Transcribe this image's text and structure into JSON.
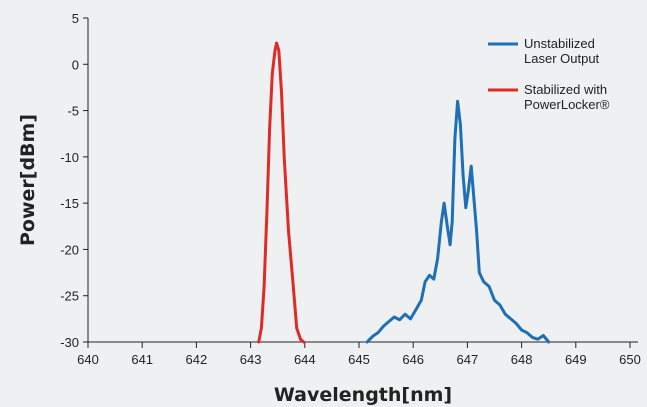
{
  "chart_data": {
    "type": "line",
    "xlabel": "Wavelength[nm]",
    "ylabel": "Power[dBm]",
    "xlim": [
      640,
      650
    ],
    "ylim": [
      -30,
      5
    ],
    "xticks": [
      "640",
      "641",
      "642",
      "643",
      "644",
      "645",
      "646",
      "647",
      "648",
      "649",
      "650"
    ],
    "yticks": [
      "5",
      "0",
      "-5",
      "-10",
      "-15",
      "-20",
      "-25",
      "-30"
    ],
    "grid": false,
    "legend_position": "top-right",
    "series": [
      {
        "name": "Unstabilized Laser Output",
        "legend_lines": [
          "Unstabilized",
          "Laser Output"
        ],
        "color": "#1f6fb5",
        "points": [
          [
            645.15,
            -30
          ],
          [
            645.25,
            -29.4
          ],
          [
            645.35,
            -29.0
          ],
          [
            645.45,
            -28.3
          ],
          [
            645.55,
            -27.8
          ],
          [
            645.65,
            -27.3
          ],
          [
            645.75,
            -27.6
          ],
          [
            645.85,
            -27.0
          ],
          [
            645.95,
            -27.5
          ],
          [
            646.05,
            -26.5
          ],
          [
            646.15,
            -25.5
          ],
          [
            646.22,
            -23.5
          ],
          [
            646.3,
            -22.8
          ],
          [
            646.38,
            -23.2
          ],
          [
            646.45,
            -21.0
          ],
          [
            646.52,
            -17.0
          ],
          [
            646.57,
            -15.0
          ],
          [
            646.63,
            -17.5
          ],
          [
            646.68,
            -19.5
          ],
          [
            646.72,
            -17.0
          ],
          [
            646.77,
            -8.0
          ],
          [
            646.82,
            -4.0
          ],
          [
            646.87,
            -6.5
          ],
          [
            646.92,
            -12.0
          ],
          [
            646.97,
            -15.5
          ],
          [
            647.02,
            -13.5
          ],
          [
            647.07,
            -11.0
          ],
          [
            647.12,
            -14.5
          ],
          [
            647.17,
            -18.0
          ],
          [
            647.22,
            -22.5
          ],
          [
            647.3,
            -23.5
          ],
          [
            647.4,
            -24.0
          ],
          [
            647.5,
            -25.5
          ],
          [
            647.6,
            -26.0
          ],
          [
            647.7,
            -27.0
          ],
          [
            647.8,
            -27.5
          ],
          [
            647.9,
            -28.0
          ],
          [
            648.0,
            -28.7
          ],
          [
            648.1,
            -29.0
          ],
          [
            648.2,
            -29.5
          ],
          [
            648.3,
            -29.7
          ],
          [
            648.4,
            -29.3
          ],
          [
            648.5,
            -30
          ]
        ]
      },
      {
        "name": "Stabilized with PowerLocker®",
        "legend_lines": [
          "Stabilized with",
          "PowerLocker®"
        ],
        "color": "#e02a26",
        "points": [
          [
            643.15,
            -30
          ],
          [
            643.2,
            -28.5
          ],
          [
            643.25,
            -24.0
          ],
          [
            643.3,
            -16.0
          ],
          [
            643.35,
            -7.0
          ],
          [
            643.4,
            -1.0
          ],
          [
            643.45,
            1.5
          ],
          [
            643.48,
            2.3
          ],
          [
            643.52,
            1.5
          ],
          [
            643.57,
            -3.0
          ],
          [
            643.62,
            -10.0
          ],
          [
            643.7,
            -18.0
          ],
          [
            643.78,
            -23.5
          ],
          [
            643.85,
            -28.5
          ],
          [
            643.92,
            -29.7
          ],
          [
            643.98,
            -30
          ]
        ]
      }
    ]
  }
}
